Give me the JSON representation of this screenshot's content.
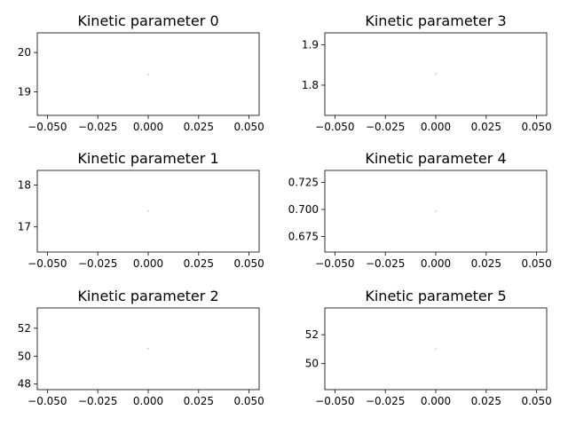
{
  "chart_data": [
    {
      "type": "scatter",
      "title": "Kinetic parameter 0",
      "xlabel": "",
      "ylabel": "",
      "xlim": [
        -0.055,
        0.055
      ],
      "ylim": [
        18.4,
        20.5
      ],
      "xticks": [
        -0.05,
        -0.025,
        0.0,
        0.025,
        0.05
      ],
      "xtick_labels": [
        "−0.050",
        "−0.025",
        "0.000",
        "0.025",
        "0.050"
      ],
      "yticks": [
        19,
        20
      ],
      "ytick_labels": [
        "19",
        "20"
      ],
      "points": [
        {
          "x": 0.0,
          "y": 19.44
        }
      ],
      "grid": false
    },
    {
      "type": "scatter",
      "title": "Kinetic parameter 1",
      "xlabel": "",
      "ylabel": "",
      "xlim": [
        -0.055,
        0.055
      ],
      "ylim": [
        16.4,
        18.35
      ],
      "xticks": [
        -0.05,
        -0.025,
        0.0,
        0.025,
        0.05
      ],
      "xtick_labels": [
        "−0.050",
        "−0.025",
        "0.000",
        "0.025",
        "0.050"
      ],
      "yticks": [
        17,
        18
      ],
      "ytick_labels": [
        "17",
        "18"
      ],
      "points": [
        {
          "x": 0.0,
          "y": 17.38
        }
      ],
      "grid": false
    },
    {
      "type": "scatter",
      "title": "Kinetic parameter 2",
      "xlabel": "",
      "ylabel": "",
      "xlim": [
        -0.055,
        0.055
      ],
      "ylim": [
        47.6,
        53.45
      ],
      "xticks": [
        -0.05,
        -0.025,
        0.0,
        0.025,
        0.05
      ],
      "xtick_labels": [
        "−0.050",
        "−0.025",
        "0.000",
        "0.025",
        "0.050"
      ],
      "yticks": [
        48,
        50,
        52
      ],
      "ytick_labels": [
        "48",
        "50",
        "52"
      ],
      "points": [
        {
          "x": 0.0,
          "y": 50.53
        }
      ],
      "grid": false
    },
    {
      "type": "scatter",
      "title": "Kinetic parameter 3",
      "xlabel": "",
      "ylabel": "",
      "xlim": [
        -0.055,
        0.055
      ],
      "ylim": [
        1.725,
        1.93
      ],
      "xticks": [
        -0.05,
        -0.025,
        0.0,
        0.025,
        0.05
      ],
      "xtick_labels": [
        "−0.050",
        "−0.025",
        "0.000",
        "0.025",
        "0.050"
      ],
      "yticks": [
        1.8,
        1.9
      ],
      "ytick_labels": [
        "1.8",
        "1.9"
      ],
      "points": [
        {
          "x": 0.0,
          "y": 1.828
        }
      ],
      "grid": false
    },
    {
      "type": "scatter",
      "title": "Kinetic parameter 4",
      "xlabel": "",
      "ylabel": "",
      "xlim": [
        -0.055,
        0.055
      ],
      "ylim": [
        0.6605,
        0.7362
      ],
      "xticks": [
        -0.05,
        -0.025,
        0.0,
        0.025,
        0.05
      ],
      "xtick_labels": [
        "−0.050",
        "−0.025",
        "0.000",
        "0.025",
        "0.050"
      ],
      "yticks": [
        0.675,
        0.7,
        0.725
      ],
      "ytick_labels": [
        "0.675",
        "0.700",
        "0.725"
      ],
      "points": [
        {
          "x": 0.0,
          "y": 0.6983
        }
      ],
      "grid": false
    },
    {
      "type": "scatter",
      "title": "Kinetic parameter 5",
      "xlabel": "",
      "ylabel": "",
      "xlim": [
        -0.055,
        0.055
      ],
      "ylim": [
        48.2,
        53.85
      ],
      "xticks": [
        -0.05,
        -0.025,
        0.0,
        0.025,
        0.05
      ],
      "xtick_labels": [
        "−0.050",
        "−0.025",
        "0.000",
        "0.025",
        "0.050"
      ],
      "yticks": [
        50,
        52
      ],
      "ytick_labels": [
        "50",
        "52"
      ],
      "points": [
        {
          "x": 0.0,
          "y": 51.0
        }
      ],
      "grid": false
    }
  ],
  "colors": {
    "marker": "#dcdcdc",
    "axes": "#000000",
    "background": "#ffffff"
  }
}
